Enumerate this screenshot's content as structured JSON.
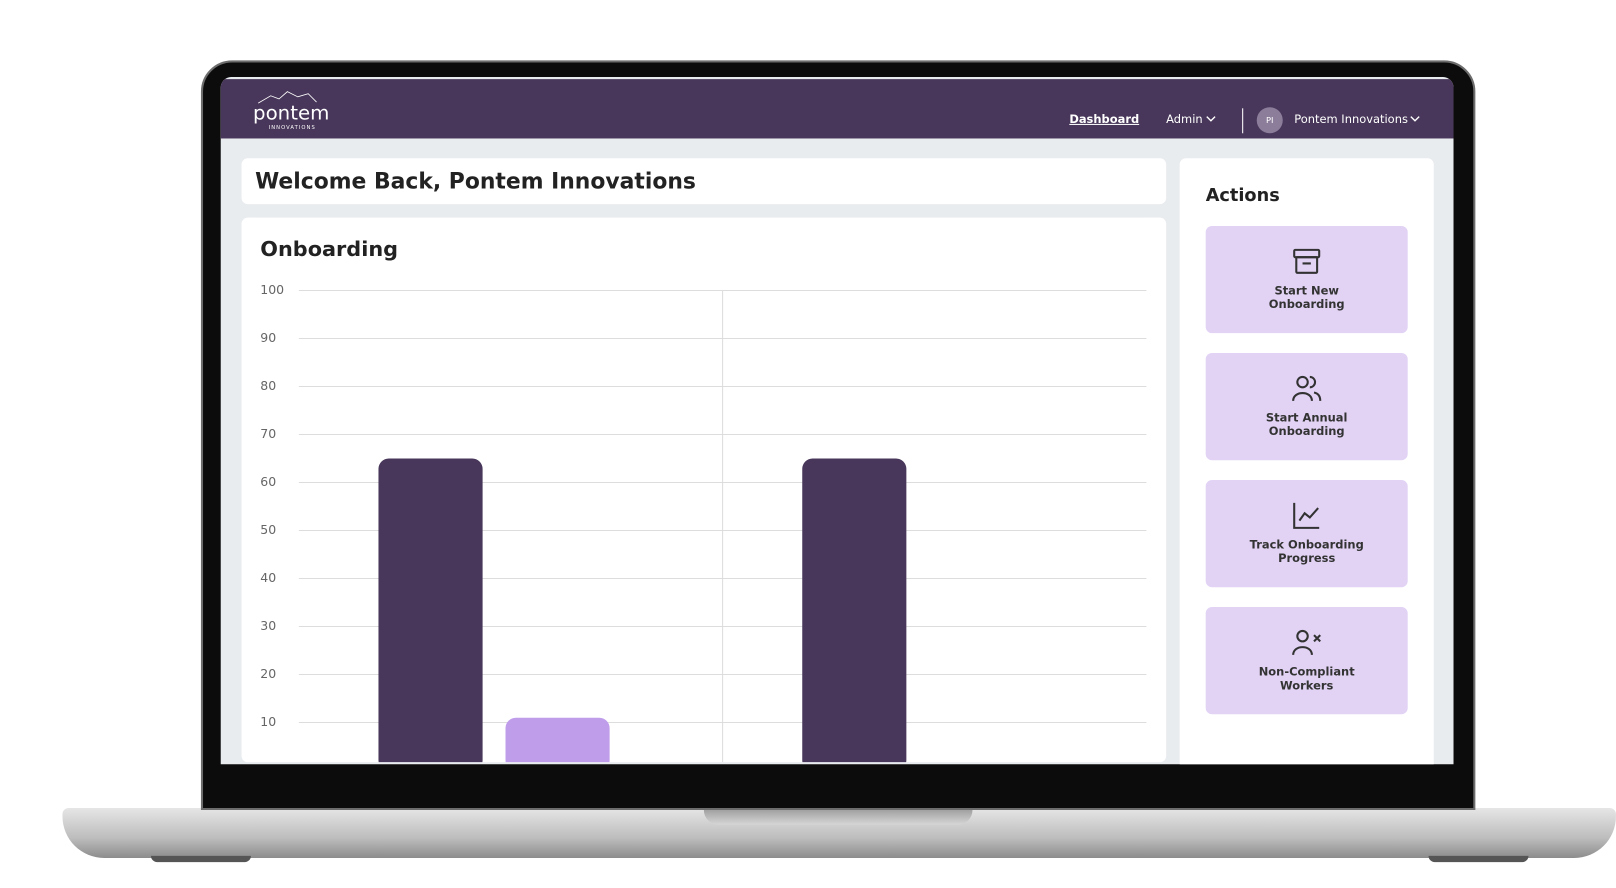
{
  "header": {
    "logo": "pontem",
    "logo_sub": "INNOVATIONS",
    "nav": [
      "Dashboard",
      "Admin"
    ],
    "avatar": "PI",
    "user": "Pontem Innovations"
  },
  "welcome": "Welcome Back, Pontem Innovations",
  "chart_data": {
    "type": "bar",
    "title": "Onboarding",
    "categories": [
      null,
      null
    ],
    "series": [
      {
        "color": "#48375a",
        "values": [
          65,
          65
        ]
      },
      {
        "color": "#bf9deb",
        "values": [
          11,
          null
        ]
      }
    ],
    "ylim": [
      0,
      100
    ],
    "yticks": [
      10,
      20,
      30,
      40,
      50,
      60,
      70,
      80,
      90,
      100
    ],
    "grid": true
  },
  "actions": {
    "title": "Actions",
    "items": [
      "Start New Onboarding",
      "Start Annual Onboarding",
      "Track Onboarding Progress",
      "Non-Compliant Workers"
    ]
  }
}
